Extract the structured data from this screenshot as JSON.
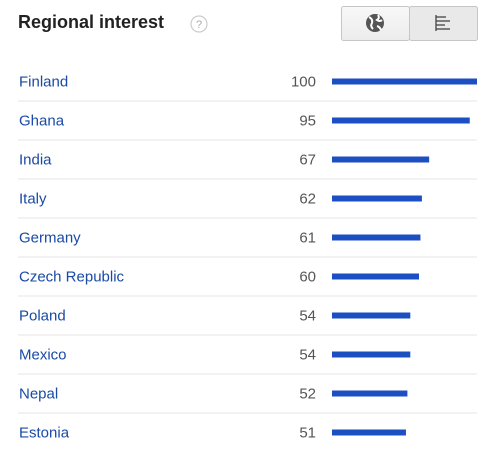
{
  "chart_data": {
    "type": "bar",
    "orientation": "horizontal",
    "title": "Regional interest",
    "help_icon": "?",
    "categories": [
      "Finland",
      "Ghana",
      "India",
      "Italy",
      "Germany",
      "Czech Republic",
      "Poland",
      "Mexico",
      "Nepal",
      "Estonia"
    ],
    "values": [
      100,
      95,
      67,
      62,
      61,
      60,
      54,
      54,
      52,
      51
    ],
    "color": "#1c4fc2"
  }
}
